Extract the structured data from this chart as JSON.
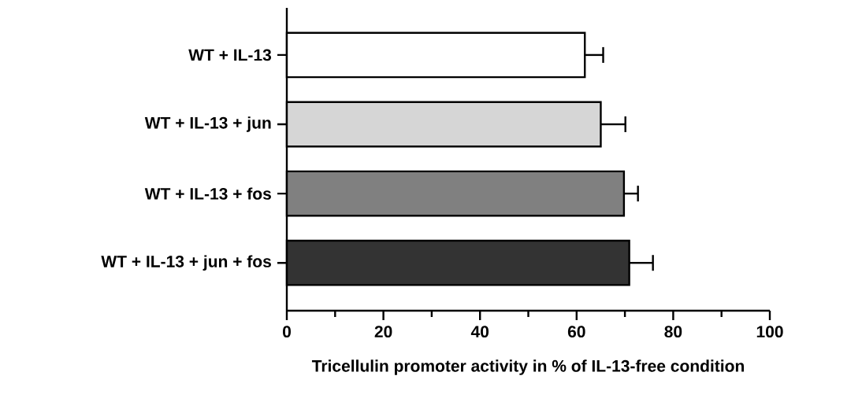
{
  "chart_data": {
    "type": "bar",
    "orientation": "horizontal",
    "xlabel": "Tricellulin promoter activity in % of IL-13-free condition",
    "categories": [
      "WT + IL-13",
      "WT + IL-13 + jun",
      "WT + IL-13 + fos",
      "WT + IL-13 + jun + fos"
    ],
    "values": [
      61.7,
      65.0,
      69.8,
      70.9
    ],
    "errors": [
      [
        61.7,
        65.5
      ],
      [
        65.0,
        70.1
      ],
      [
        69.8,
        72.7
      ],
      [
        70.9,
        75.8
      ]
    ],
    "colors": [
      "#ffffff",
      "#d6d6d6",
      "#808080",
      "#333333"
    ],
    "xlim": [
      0,
      100
    ],
    "xticks": [
      0,
      {
        "value": 10,
        "label": null
      },
      20,
      {
        "value": 30,
        "label": null
      },
      40,
      {
        "value": 50,
        "label": null
      },
      60,
      {
        "value": 70,
        "label": null
      },
      80,
      {
        "value": 90,
        "label": null
      },
      100
    ]
  }
}
